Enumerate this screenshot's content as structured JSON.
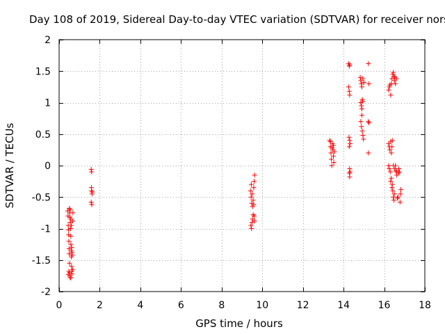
{
  "chart_data": {
    "type": "scatter",
    "title": "Day 108 of 2019, Sidereal Day-to-day VTEC variation (SDTVAR) for receiver nors",
    "xlabel": "GPS time / hours",
    "ylabel": "SDTVAR / TECUs",
    "xlim": [
      0,
      18
    ],
    "ylim": [
      -2,
      2
    ],
    "x_ticks": [
      0,
      2,
      4,
      6,
      8,
      10,
      12,
      14,
      16,
      18
    ],
    "y_ticks": [
      -2,
      -1.5,
      -1,
      -0.5,
      0,
      0.5,
      1,
      1.5,
      2
    ],
    "x_tick_labels": [
      "0",
      "2",
      "4",
      "6",
      "8",
      "10",
      "12",
      "14",
      "16",
      "18"
    ],
    "y_tick_labels": [
      "-2",
      "-1.5",
      "-1",
      "-0.5",
      "0",
      "0.5",
      "1",
      "1.5",
      "2"
    ],
    "grid": true,
    "marker": "+",
    "color": "#ff0000",
    "series": [
      {
        "name": "SDTVAR",
        "points": [
          [
            0.42,
            -0.72
          ],
          [
            0.44,
            -0.8
          ],
          [
            0.45,
            -0.95
          ],
          [
            0.46,
            -1.02
          ],
          [
            0.47,
            -1.1
          ],
          [
            0.48,
            -1.2
          ],
          [
            0.49,
            -1.32
          ],
          [
            0.5,
            -1.4
          ],
          [
            0.51,
            -1.55
          ],
          [
            0.52,
            -1.7
          ],
          [
            0.53,
            -1.75
          ],
          [
            0.54,
            -1.78
          ],
          [
            0.5,
            -0.68
          ],
          [
            0.52,
            -0.75
          ],
          [
            0.53,
            -0.82
          ],
          [
            0.55,
            -0.9
          ],
          [
            0.56,
            -1.0
          ],
          [
            0.57,
            -1.12
          ],
          [
            0.58,
            -1.25
          ],
          [
            0.59,
            -1.35
          ],
          [
            0.6,
            -1.45
          ],
          [
            0.61,
            -1.6
          ],
          [
            0.62,
            -1.68
          ],
          [
            0.63,
            -1.72
          ],
          [
            0.55,
            -0.7
          ],
          [
            0.58,
            -0.85
          ],
          [
            0.6,
            -0.95
          ],
          [
            0.62,
            -1.3
          ],
          [
            0.64,
            -1.38
          ],
          [
            0.65,
            -1.42
          ],
          [
            0.66,
            -1.65
          ],
          [
            0.67,
            -0.88
          ],
          [
            0.68,
            -0.75
          ],
          [
            0.45,
            -1.73
          ],
          [
            0.48,
            -1.68
          ],
          [
            0.58,
            -1.78
          ],
          [
            1.58,
            -0.06
          ],
          [
            1.6,
            -0.1
          ],
          [
            1.59,
            -0.35
          ],
          [
            1.6,
            -0.4
          ],
          [
            1.62,
            -0.45
          ],
          [
            1.58,
            -0.58
          ],
          [
            1.61,
            -0.62
          ],
          [
            1.63,
            -0.42
          ],
          [
            9.42,
            -0.4
          ],
          [
            9.45,
            -0.5
          ],
          [
            9.48,
            -0.6
          ],
          [
            9.44,
            -0.95
          ],
          [
            9.47,
            -1.0
          ],
          [
            9.5,
            -0.9
          ],
          [
            9.52,
            -0.85
          ],
          [
            9.55,
            -0.78
          ],
          [
            9.5,
            -0.45
          ],
          [
            9.55,
            -0.55
          ],
          [
            9.58,
            -0.35
          ],
          [
            9.6,
            -0.25
          ],
          [
            9.62,
            -0.15
          ],
          [
            9.58,
            -0.62
          ],
          [
            9.6,
            -0.8
          ],
          [
            9.62,
            -0.88
          ],
          [
            9.46,
            -0.3
          ],
          [
            9.52,
            -0.65
          ],
          [
            13.32,
            0.4
          ],
          [
            13.35,
            0.3
          ],
          [
            13.38,
            0.2
          ],
          [
            13.4,
            0.1
          ],
          [
            13.42,
            0.0
          ],
          [
            13.45,
            0.35
          ],
          [
            13.48,
            0.25
          ],
          [
            13.5,
            0.15
          ],
          [
            13.52,
            0.05
          ],
          [
            13.35,
            0.38
          ],
          [
            13.44,
            0.28
          ],
          [
            13.5,
            0.32
          ],
          [
            13.55,
            0.22
          ],
          [
            14.25,
            1.62
          ],
          [
            14.28,
            1.58
          ],
          [
            14.3,
            1.6
          ],
          [
            14.25,
            1.25
          ],
          [
            14.28,
            1.18
          ],
          [
            14.3,
            1.12
          ],
          [
            14.27,
            0.45
          ],
          [
            14.3,
            0.4
          ],
          [
            14.32,
            0.35
          ],
          [
            14.28,
            0.3
          ],
          [
            14.3,
            -0.05
          ],
          [
            14.32,
            -0.1
          ],
          [
            14.28,
            -0.12
          ],
          [
            14.3,
            -0.18
          ],
          [
            14.82,
            1.4
          ],
          [
            14.85,
            1.35
          ],
          [
            14.88,
            1.3
          ],
          [
            14.9,
            1.25
          ],
          [
            14.85,
            1.0
          ],
          [
            14.88,
            0.95
          ],
          [
            14.9,
            0.9
          ],
          [
            14.92,
            1.05
          ],
          [
            14.95,
            1.02
          ],
          [
            14.85,
            0.7
          ],
          [
            14.88,
            0.62
          ],
          [
            14.92,
            0.55
          ],
          [
            14.95,
            0.48
          ],
          [
            14.98,
            0.42
          ],
          [
            14.9,
            0.8
          ],
          [
            15.0,
            1.32
          ],
          [
            14.95,
            1.38
          ],
          [
            15.22,
            1.62
          ],
          [
            15.25,
            1.3
          ],
          [
            15.22,
            0.7
          ],
          [
            15.25,
            0.68
          ],
          [
            15.22,
            0.2
          ],
          [
            16.22,
            1.2
          ],
          [
            16.25,
            1.25
          ],
          [
            16.28,
            1.28
          ],
          [
            16.32,
            1.12
          ],
          [
            16.35,
            1.3
          ],
          [
            16.38,
            1.38
          ],
          [
            16.42,
            1.45
          ],
          [
            16.45,
            1.48
          ],
          [
            16.48,
            1.42
          ],
          [
            16.5,
            1.35
          ],
          [
            16.52,
            1.4
          ],
          [
            16.55,
            1.3
          ],
          [
            16.6,
            1.38
          ],
          [
            16.22,
            0.35
          ],
          [
            16.25,
            0.3
          ],
          [
            16.28,
            0.25
          ],
          [
            16.32,
            0.38
          ],
          [
            16.35,
            0.2
          ],
          [
            16.38,
            0.3
          ],
          [
            16.4,
            0.4
          ],
          [
            16.22,
            0.0
          ],
          [
            16.25,
            -0.05
          ],
          [
            16.3,
            -0.1
          ],
          [
            16.35,
            -0.2
          ],
          [
            16.4,
            -0.3
          ],
          [
            16.42,
            -0.4
          ],
          [
            16.45,
            -0.5
          ],
          [
            16.48,
            -0.55
          ],
          [
            16.5,
            -0.45
          ],
          [
            16.52,
            -0.05
          ],
          [
            16.55,
            0.0
          ],
          [
            16.58,
            -0.08
          ],
          [
            16.6,
            -0.1
          ],
          [
            16.62,
            -0.15
          ],
          [
            16.65,
            -0.52
          ],
          [
            16.68,
            -0.5
          ],
          [
            16.7,
            -0.12
          ],
          [
            16.75,
            -0.1
          ],
          [
            16.8,
            -0.45
          ],
          [
            16.82,
            -0.38
          ],
          [
            16.78,
            -0.58
          ],
          [
            16.72,
            -0.05
          ],
          [
            16.32,
            -0.25
          ],
          [
            16.38,
            -0.35
          ],
          [
            16.45,
            0.0
          ]
        ]
      }
    ]
  }
}
